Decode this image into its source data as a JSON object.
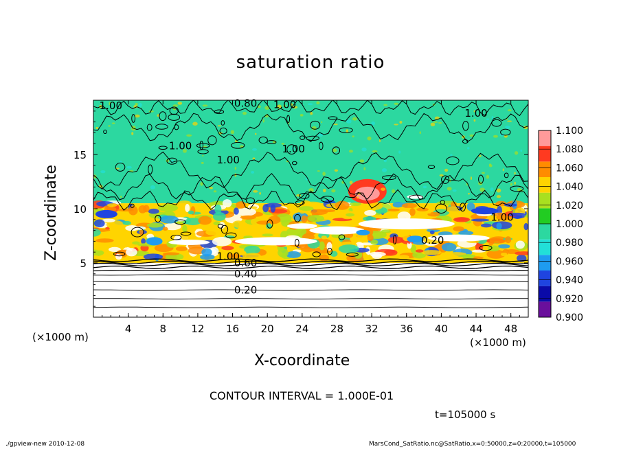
{
  "chart_data": {
    "type": "heatmap",
    "title": "saturation ratio",
    "xlabel": "X-coordinate",
    "ylabel": "Z-coordinate",
    "x_unit": "(×1000 m)",
    "y_unit": "(×1000 m)",
    "xlim": [
      0,
      50
    ],
    "ylim": [
      0,
      20
    ],
    "x_ticks": [
      "4",
      "8",
      "12",
      "16",
      "20",
      "24",
      "28",
      "32",
      "36",
      "40",
      "44",
      "48"
    ],
    "y_ticks": [
      "5",
      "10",
      "15"
    ],
    "colorbar": {
      "range": [
        0.9,
        1.1
      ],
      "levels": [
        "0.900",
        "0.920",
        "0.940",
        "0.960",
        "0.980",
        "1.000",
        "1.020",
        "1.040",
        "1.060",
        "1.080",
        "1.100"
      ],
      "colors": [
        "#6a0f9c",
        "#0a0aa8",
        "#1f44e0",
        "#1e9cf0",
        "#22e0d8",
        "#2cd8a0",
        "#22cc22",
        "#a8e020",
        "#ffd400",
        "#ff8c00",
        "#ff3a20",
        "#ff9a9a"
      ]
    },
    "background_value": 1.0,
    "regions": [
      {
        "x": [
          0,
          50
        ],
        "z": [
          10.5,
          20
        ],
        "value": 1.0
      },
      {
        "x": [
          0,
          50
        ],
        "z": [
          5,
          10.5
        ],
        "value": 1.04
      },
      {
        "x": [
          0,
          50
        ],
        "z": [
          0,
          5
        ],
        "value": null
      }
    ],
    "contour_labels": [
      {
        "text": "1.00",
        "x": 2,
        "z": 19.5
      },
      {
        "text": "0.80",
        "x": 17.5,
        "z": 19.7
      },
      {
        "text": "1.00",
        "x": 22,
        "z": 19.6
      },
      {
        "text": "1.00",
        "x": 10,
        "z": 15.8
      },
      {
        "text": "1.00",
        "x": 15.5,
        "z": 14.5
      },
      {
        "text": "1.00",
        "x": 23,
        "z": 15.5
      },
      {
        "text": "1.00",
        "x": 44,
        "z": 18.8
      },
      {
        "text": "1.00",
        "x": 47,
        "z": 9.2
      },
      {
        "text": "1.00",
        "x": 15.5,
        "z": 5.6
      },
      {
        "text": "0.20",
        "x": 39,
        "z": 7.1
      },
      {
        "text": "0.60",
        "x": 17.5,
        "z": 5.0
      },
      {
        "text": "0.40",
        "x": 17.5,
        "z": 4.0
      },
      {
        "text": "0.20",
        "x": 17.5,
        "z": 2.5
      }
    ],
    "contour_interval": "CONTOUR INTERVAL = 1.000E-01",
    "time": "t=105000 s"
  },
  "footer": {
    "left": "./gpview-new   2010-12-08",
    "right": "MarsCond_SatRatio.nc@SatRatio,x=0:50000,z=0:20000,t=105000"
  }
}
